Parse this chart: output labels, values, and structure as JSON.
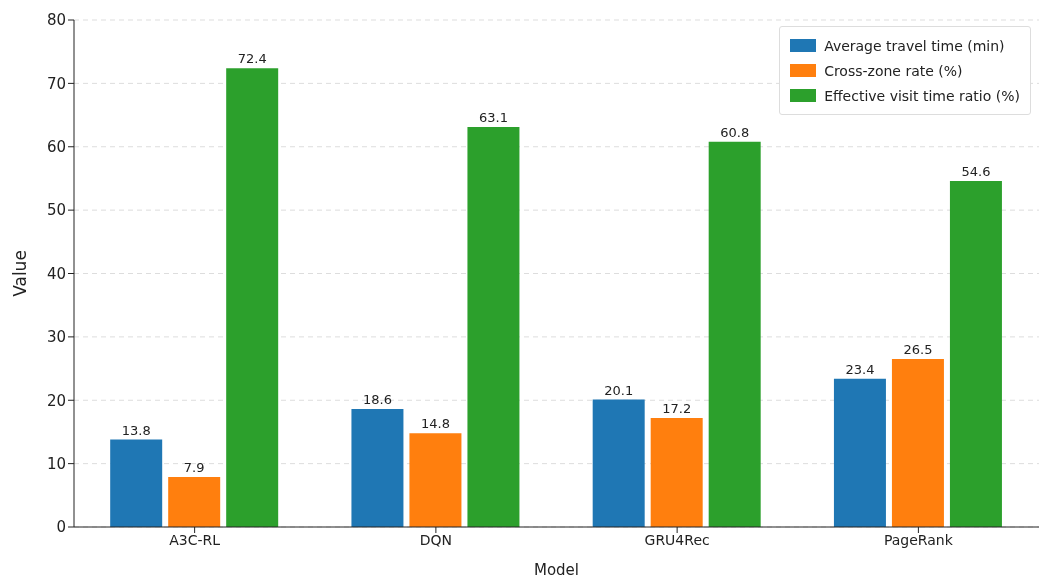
{
  "chart_data": {
    "type": "bar",
    "xlabel": "Model",
    "ylabel": "Value",
    "categories": [
      "A3C-RL",
      "DQN",
      "GRU4Rec",
      "PageRank"
    ],
    "series": [
      {
        "name": "Average travel time (min)",
        "color": "#1f77b4",
        "values": [
          13.8,
          18.6,
          20.1,
          23.4
        ]
      },
      {
        "name": "Cross-zone rate (%)",
        "color": "#ff7f0e",
        "values": [
          7.9,
          14.8,
          17.2,
          26.5
        ]
      },
      {
        "name": "Effective visit time ratio (%)",
        "color": "#2ca02c",
        "values": [
          72.4,
          63.1,
          60.8,
          54.6
        ]
      }
    ],
    "ylim": [
      0,
      80
    ],
    "yticks": [
      0,
      10,
      20,
      30,
      40,
      50,
      60,
      70,
      80
    ],
    "grid": "y",
    "legend": "top right",
    "data_labels": true
  }
}
